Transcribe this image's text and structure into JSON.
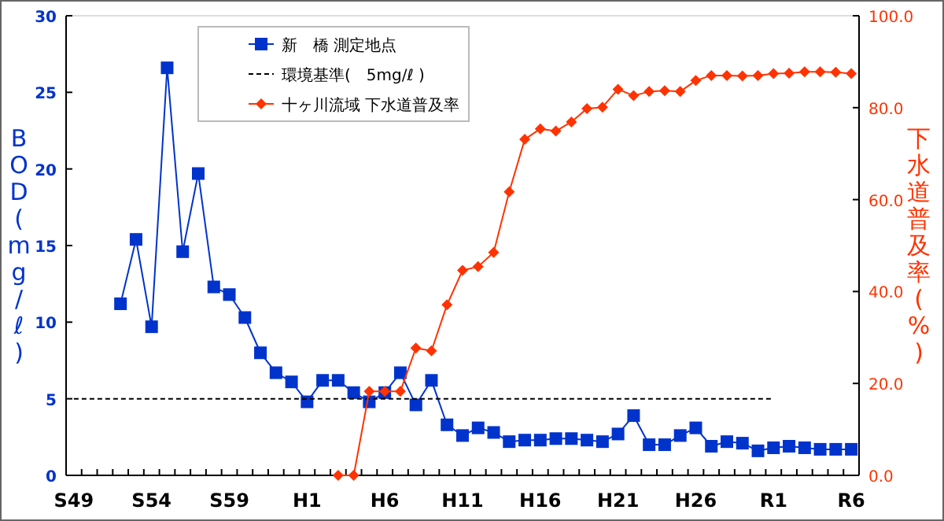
{
  "chart_data": {
    "type": "line",
    "ylabel": "BOD(mg/ℓ)",
    "y2label": "下水道普及率(%)",
    "categories": [
      "S49",
      null,
      null,
      null,
      null,
      "S54",
      null,
      null,
      null,
      null,
      "S59",
      null,
      null,
      null,
      null,
      "H1",
      null,
      null,
      null,
      null,
      "H6",
      null,
      null,
      null,
      null,
      "H11",
      null,
      null,
      null,
      null,
      "H16",
      null,
      null,
      null,
      null,
      "H21",
      null,
      null,
      null,
      null,
      "H26",
      null,
      null,
      null,
      null,
      "R1",
      null,
      null,
      null,
      null,
      "R6"
    ],
    "ylim": [
      0,
      30
    ],
    "yticks": [
      0,
      5,
      10,
      15,
      20,
      25,
      30
    ],
    "y2lim": [
      0,
      100
    ],
    "y2ticks": [
      {
        "value": 0,
        "label": "0.0"
      },
      {
        "value": 20,
        "label": "20.0"
      },
      {
        "value": 40,
        "label": "40.0"
      },
      {
        "value": 60,
        "label": "60.0"
      },
      {
        "value": 80,
        "label": "80.0"
      },
      {
        "value": 100,
        "label": "100.0"
      }
    ],
    "legend": "top",
    "grid": false,
    "series": [
      {
        "name": "新　橋 測定地点",
        "color": "#0033cc",
        "marker": "square",
        "line_style": "solid",
        "values": [
          null,
          null,
          null,
          11.2,
          15.4,
          9.7,
          26.6,
          14.6,
          19.7,
          12.3,
          11.8,
          10.3,
          8.0,
          6.7,
          6.1,
          4.8,
          6.2,
          6.2,
          5.4,
          4.8,
          5.4,
          6.7,
          4.6,
          6.2,
          3.3,
          2.6,
          3.1,
          2.8,
          2.2,
          2.3,
          2.3,
          2.4,
          2.4,
          2.3,
          2.2,
          2.7,
          3.9,
          2.0,
          2.0,
          2.6,
          3.1,
          1.9,
          2.2,
          2.1,
          1.6,
          1.8,
          1.9,
          1.8,
          1.7,
          1.7,
          1.7
        ]
      },
      {
        "name": "環境基準(　5mg/ℓ )",
        "color": "#000000",
        "marker": "none",
        "line_style": "dashed",
        "values": [
          5,
          5,
          5,
          5,
          5,
          5,
          5,
          5,
          5,
          5,
          5,
          5,
          5,
          5,
          5,
          5,
          5,
          5,
          5,
          5,
          5,
          5,
          5,
          5,
          5,
          5,
          5,
          5,
          5,
          5,
          5,
          5,
          5,
          5,
          5,
          5,
          5,
          5,
          5,
          5,
          5,
          5,
          5,
          5,
          5,
          5,
          null,
          null,
          null,
          null,
          null
        ]
      },
      {
        "name": "十ヶ川流域 下水道普及率",
        "color": "#ff3300",
        "marker": "diamond",
        "line_style": "solid",
        "axis": "y2",
        "values": [
          null,
          null,
          null,
          null,
          null,
          null,
          null,
          null,
          null,
          null,
          null,
          null,
          null,
          null,
          null,
          null,
          null,
          0,
          0,
          18.3,
          18.3,
          18.3,
          27.7,
          27.1,
          37.1,
          44.6,
          45.4,
          48.5,
          61.7,
          73.1,
          75.4,
          74.9,
          76.9,
          79.8,
          80.1,
          84.0,
          82.6,
          83.5,
          83.7,
          83.5,
          85.9,
          87.0,
          87.0,
          86.9,
          87.0,
          87.4,
          87.5,
          87.8,
          87.8,
          87.7,
          87.4
        ]
      }
    ]
  }
}
